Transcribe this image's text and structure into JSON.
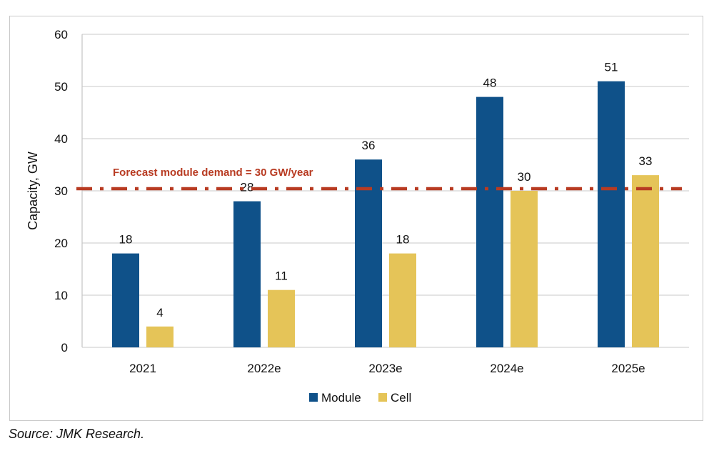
{
  "chart_data": {
    "type": "bar",
    "categories": [
      "2021",
      "2022e",
      "2023e",
      "2024e",
      "2025e"
    ],
    "series": [
      {
        "name": "Module",
        "values": [
          18,
          28,
          36,
          48,
          51
        ],
        "color": "#0F5189"
      },
      {
        "name": "Cell",
        "values": [
          4,
          11,
          18,
          30,
          33
        ],
        "color": "#E5C458"
      }
    ],
    "ylabel": "Capacity, GW",
    "xlabel": "",
    "ylim": [
      0,
      60
    ],
    "yticks": [
      0,
      10,
      20,
      30,
      40,
      50,
      60
    ],
    "grid": true,
    "legend": "bottom",
    "reference_line": {
      "value": 30,
      "label": "Forecast module demand = 30 GW/year",
      "color": "#B83B22",
      "style": "dash-dot"
    }
  },
  "source": "Source: JMK Research."
}
